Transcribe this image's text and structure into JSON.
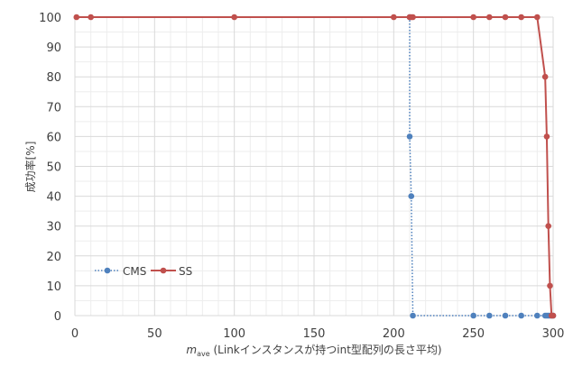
{
  "chart_data": {
    "type": "scatter",
    "xlabel": {
      "main": "m",
      "sub": "ave",
      "rest": " (Linkインスタンスが持つint型配列の長さ平均)"
    },
    "ylabel": "成功率[%]",
    "xlim": [
      0,
      300
    ],
    "ylim": [
      0,
      100
    ],
    "xticks": [
      0,
      50,
      100,
      150,
      200,
      250,
      300
    ],
    "yticks": [
      0,
      10,
      20,
      30,
      40,
      50,
      60,
      70,
      80,
      90,
      100
    ],
    "grid": true,
    "legend_position": "bottom-left",
    "series": [
      {
        "name": "CMS",
        "color": "#4f81bd",
        "line_style": "dotted",
        "marker": "circle",
        "points": [
          [
            210,
            100
          ],
          [
            210,
            60
          ],
          [
            211,
            40
          ],
          [
            212,
            0
          ],
          [
            250,
            0
          ],
          [
            260,
            0
          ],
          [
            270,
            0
          ],
          [
            280,
            0
          ],
          [
            290,
            0
          ],
          [
            295,
            0
          ],
          [
            296,
            0
          ],
          [
            297,
            0
          ],
          [
            298,
            0
          ],
          [
            299,
            0
          ],
          [
            300,
            0
          ]
        ]
      },
      {
        "name": "SS",
        "color": "#c0504d",
        "line_style": "solid",
        "marker": "circle",
        "points": [
          [
            1,
            100
          ],
          [
            10,
            100
          ],
          [
            100,
            100
          ],
          [
            200,
            100
          ],
          [
            210,
            100
          ],
          [
            211,
            100
          ],
          [
            212,
            100
          ],
          [
            250,
            100
          ],
          [
            260,
            100
          ],
          [
            270,
            100
          ],
          [
            280,
            100
          ],
          [
            290,
            100
          ],
          [
            295,
            80
          ],
          [
            296,
            60
          ],
          [
            297,
            30
          ],
          [
            298,
            10
          ],
          [
            299,
            0
          ],
          [
            300,
            0
          ]
        ]
      }
    ]
  }
}
